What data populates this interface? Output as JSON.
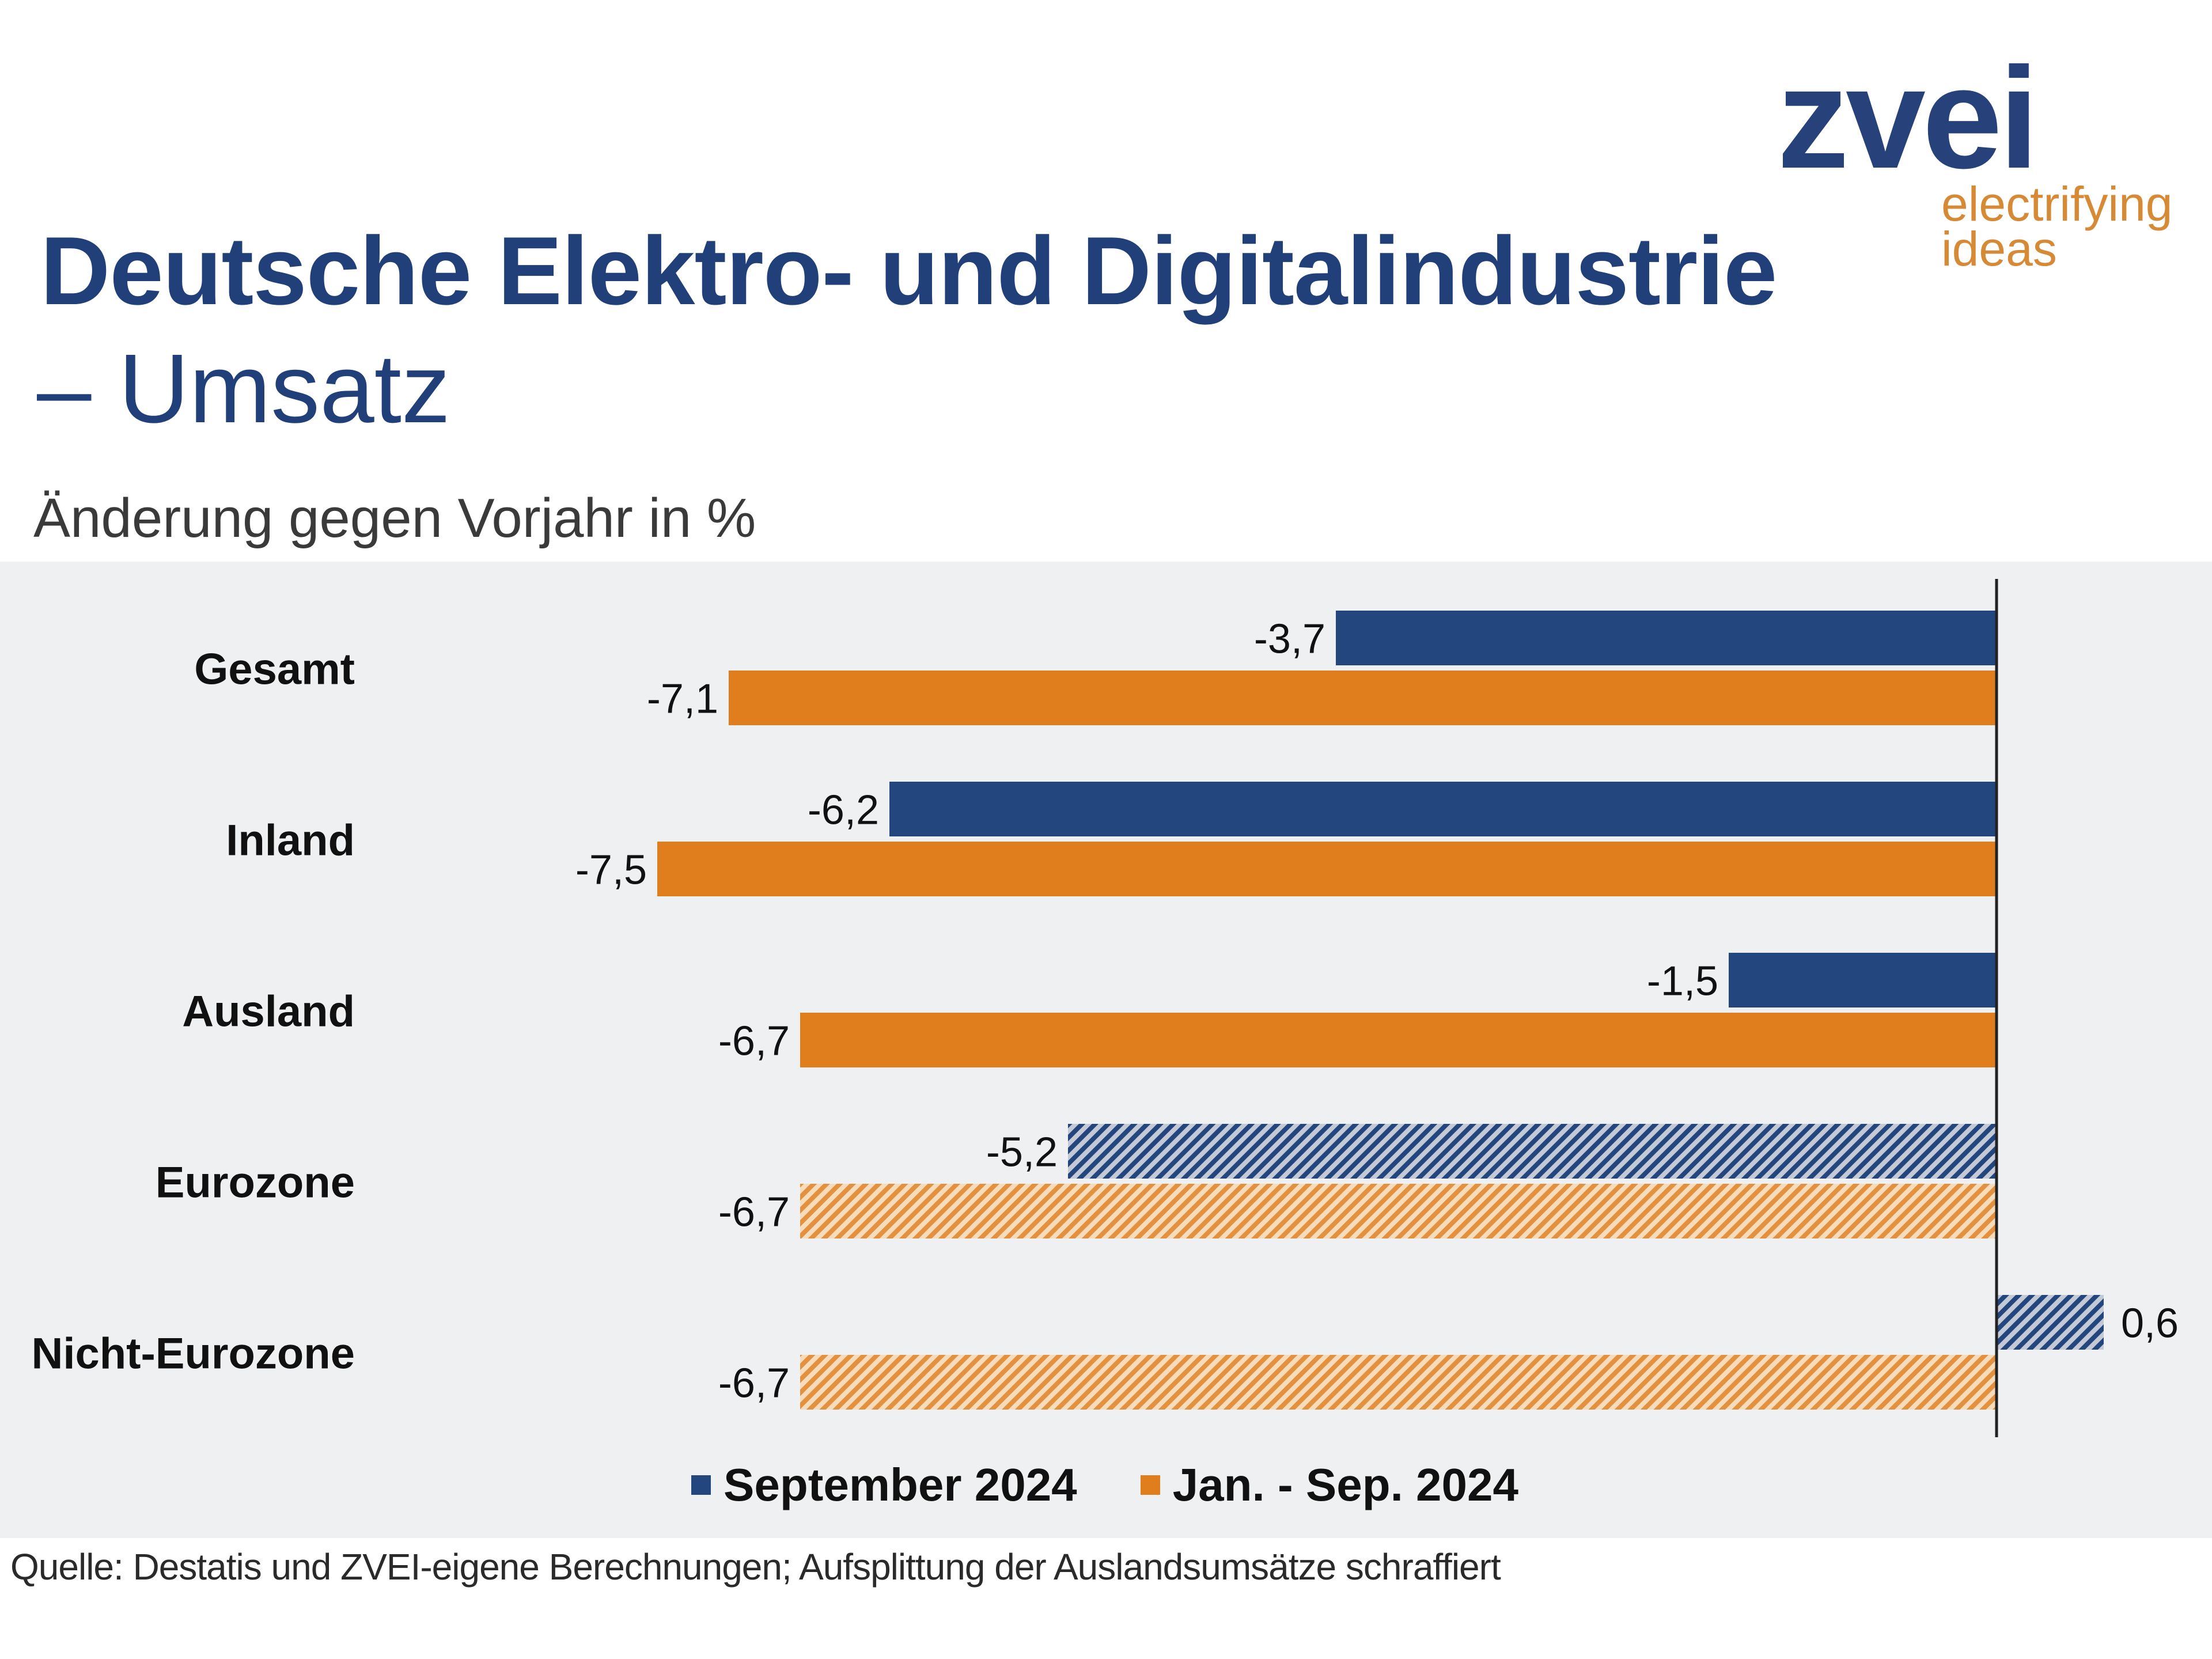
{
  "logo": {
    "word": "zvei",
    "tagline_line1": "electrifying",
    "tagline_line2": "ideas"
  },
  "title": {
    "line1": "Deutsche Elektro- und Digitalindustrie",
    "line2": "– Umsatz"
  },
  "subtitle": "Änderung gegen Vorjahr in %",
  "legend": {
    "series1": "September 2024",
    "series2": "Jan. - Sep. 2024"
  },
  "source": "Quelle: Destatis und ZVEI-eigene Berechnungen; Aufsplittung der Auslandsumsätze schraffiert",
  "colors": {
    "series1": "#24467f",
    "series2": "#e07d1c",
    "background": "#eff0f1"
  },
  "chart_data": {
    "type": "bar",
    "orientation": "horizontal",
    "title": "Deutsche Elektro- und Digitalindustrie – Umsatz",
    "ylabel": "Änderung gegen Vorjahr in %",
    "categories": [
      "Gesamt",
      "Inland",
      "Ausland",
      "Eurozone",
      "Nicht-Eurozone"
    ],
    "value_labels": {
      "series1": [
        "-3,7",
        "-6,2",
        "-1,5",
        "-5,2",
        "0,6"
      ],
      "series2": [
        "-7,1",
        "-7,5",
        "-6,7",
        "-6,7",
        "-6,7"
      ]
    },
    "series": [
      {
        "name": "September 2024",
        "values": [
          -3.7,
          -6.2,
          -1.5,
          -5.2,
          0.6
        ],
        "hatched": [
          false,
          false,
          false,
          true,
          true
        ]
      },
      {
        "name": "Jan. - Sep. 2024",
        "values": [
          -7.1,
          -7.5,
          -6.7,
          -6.7,
          -6.7
        ],
        "hatched": [
          false,
          false,
          false,
          true,
          true
        ]
      }
    ],
    "xlim": [
      -8,
      1
    ],
    "grid": false,
    "legend_position": "bottom"
  }
}
